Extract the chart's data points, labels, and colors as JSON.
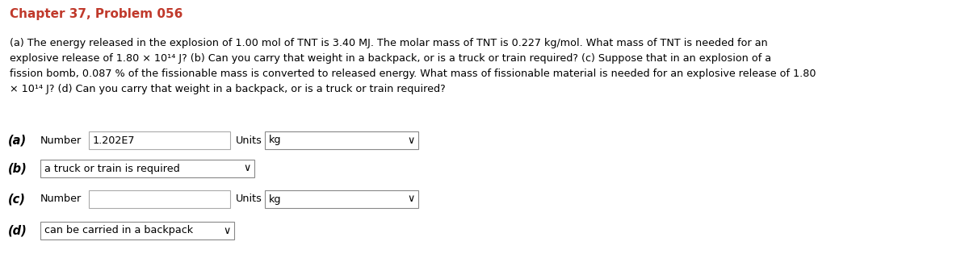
{
  "title": "Chapter 37, Problem 056",
  "title_color": "#c0392b",
  "background_color": "#ffffff",
  "part_a_label": "(a)",
  "part_a_number_label": "Number",
  "part_a_number_value": "1.202E7",
  "part_a_units_label": "Units",
  "part_a_units_value": "kg",
  "part_b_label": "(b)",
  "part_b_dropdown_value": "a truck or train is required",
  "part_c_label": "(c)",
  "part_c_number_label": "Number",
  "part_c_number_value": "",
  "part_c_units_label": "Units",
  "part_c_units_value": "kg",
  "part_d_label": "(d)",
  "part_d_dropdown_value": "can be carried in a backpack",
  "body_fontsize": 9.2,
  "label_fontsize": 10.5,
  "title_fontsize": 11,
  "line1": "(a) The energy released in the explosion of 1.00 mol of TNT is 3.40 MJ. The molar mass of TNT is 0.227 kg/mol. What mass of TNT is needed for an",
  "line2": "explosive release of 1.80 × 10¹⁴ J? (b) Can you carry that weight in a backpack, or is a truck or train required? (c) Suppose that in an explosion of a",
  "line3": "fission bomb, 0.087 % of the fissionable mass is converted to released energy. What mass of fissionable material is needed for an explosive release of 1.80",
  "line4": "× 10¹⁴ J? (d) Can you carry that weight in a backpack, or is a truck or train required?"
}
